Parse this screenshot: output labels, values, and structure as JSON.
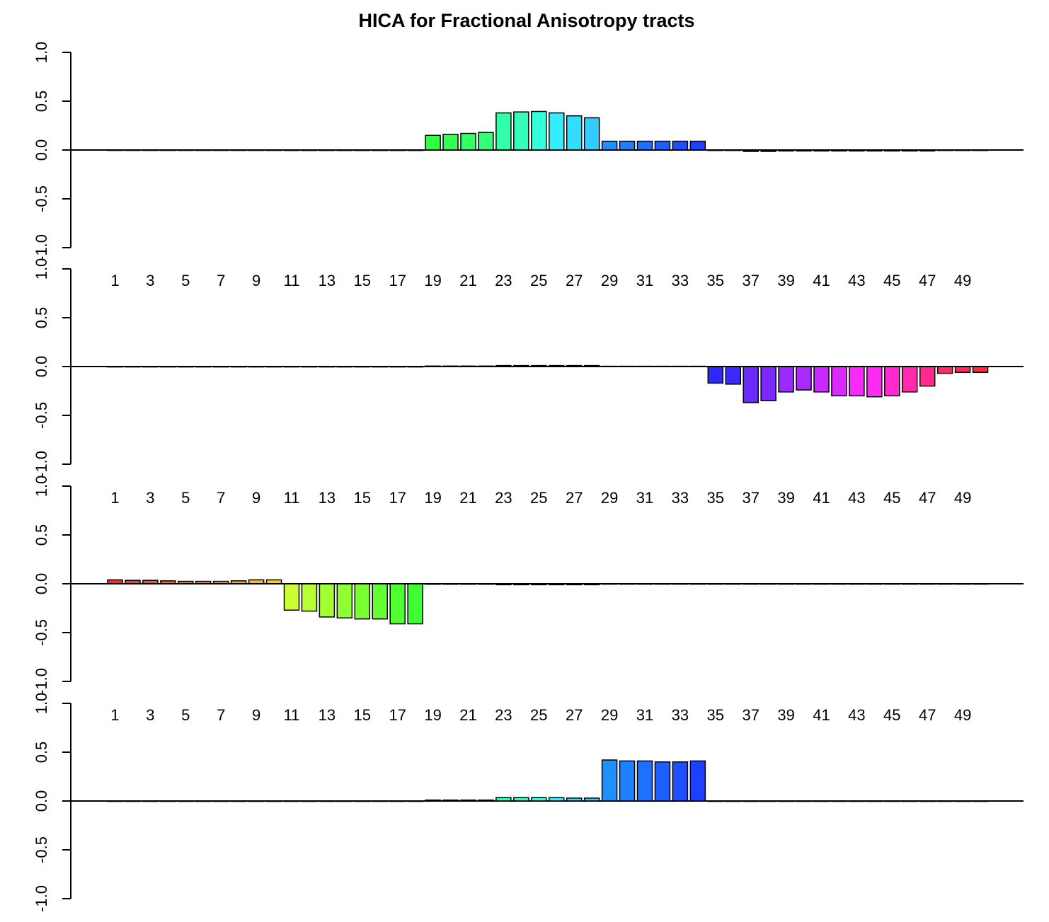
{
  "title": "HICA for  Fractional Anisotropy tracts",
  "chart_data": [
    {
      "type": "bar",
      "categories": [
        "1",
        "2",
        "3",
        "4",
        "5",
        "6",
        "7",
        "8",
        "9",
        "10",
        "11",
        "12",
        "13",
        "14",
        "15",
        "16",
        "17",
        "18",
        "19",
        "20",
        "21",
        "22",
        "23",
        "24",
        "25",
        "26",
        "27",
        "28",
        "29",
        "30",
        "31",
        "32",
        "33",
        "34",
        "35",
        "36",
        "37",
        "38",
        "39",
        "40",
        "41",
        "42",
        "43",
        "44",
        "45",
        "46",
        "47",
        "48",
        "49",
        "50"
      ],
      "values": [
        0,
        0,
        0,
        0,
        0,
        0,
        0,
        0,
        0,
        0,
        -0.005,
        -0.005,
        -0.005,
        -0.005,
        -0.005,
        -0.005,
        -0.005,
        -0.005,
        0.15,
        0.16,
        0.17,
        0.18,
        0.38,
        0.39,
        0.395,
        0.38,
        0.35,
        0.33,
        0.09,
        0.09,
        0.09,
        0.09,
        0.09,
        0.09,
        -0.005,
        -0.005,
        -0.015,
        -0.015,
        -0.01,
        -0.01,
        -0.01,
        -0.01,
        -0.01,
        -0.01,
        -0.01,
        -0.01,
        -0.01,
        -0.005,
        -0.005,
        -0.005
      ],
      "colors": [
        "#ff2a2a",
        "#ff3c2a",
        "#ff4e2a",
        "#ff602a",
        "#ff722a",
        "#ff842a",
        "#ff962a",
        "#ffa82a",
        "#ffba2a",
        "#ffcc2a",
        "#ccff33",
        "#b8ff33",
        "#a4ff33",
        "#8fff33",
        "#7aff33",
        "#66ff33",
        "#52ff33",
        "#3eff33",
        "#33ff44",
        "#33ff55",
        "#33ff66",
        "#33ff77",
        "#33ffaa",
        "#33ffbb",
        "#33ffdd",
        "#33eeff",
        "#33ddff",
        "#33ccff",
        "#1e90ff",
        "#1e80ff",
        "#1e70ff",
        "#1e60ff",
        "#1e50ff",
        "#1e40ff",
        "#2a2aff",
        "#3a2aff",
        "#6a2aff",
        "#7a2aff",
        "#9a2aff",
        "#aa2aff",
        "#ca2aff",
        "#da2aff",
        "#fa2aff",
        "#ff2af0",
        "#ff2ad0",
        "#ff2ab0",
        "#ff2a90",
        "#ff2a70",
        "#ff2a55",
        "#ff2a40"
      ],
      "yticks": [
        "-1.0",
        "-0.5",
        "0.0",
        "0.5",
        "1.0"
      ],
      "ylim": [
        -1.0,
        1.0
      ],
      "xtick_labels": []
    },
    {
      "type": "bar",
      "categories": [
        "1",
        "2",
        "3",
        "4",
        "5",
        "6",
        "7",
        "8",
        "9",
        "10",
        "11",
        "12",
        "13",
        "14",
        "15",
        "16",
        "17",
        "18",
        "19",
        "20",
        "21",
        "22",
        "23",
        "24",
        "25",
        "26",
        "27",
        "28",
        "29",
        "30",
        "31",
        "32",
        "33",
        "34",
        "35",
        "36",
        "37",
        "38",
        "39",
        "40",
        "41",
        "42",
        "43",
        "44",
        "45",
        "46",
        "47",
        "48",
        "49",
        "50"
      ],
      "values": [
        0,
        0,
        0,
        0,
        0,
        0,
        0,
        0,
        0,
        0,
        0,
        0,
        0,
        0,
        0,
        0,
        0,
        0,
        0.005,
        0.005,
        0.005,
        0.005,
        0.01,
        0.01,
        0.01,
        0.01,
        0.01,
        0.01,
        0.003,
        0.003,
        0.003,
        0.003,
        0.003,
        0.003,
        -0.17,
        -0.18,
        -0.37,
        -0.35,
        -0.26,
        -0.24,
        -0.26,
        -0.3,
        -0.3,
        -0.31,
        -0.3,
        -0.26,
        -0.2,
        -0.07,
        -0.06,
        -0.06
      ],
      "colors": [
        "#ff2a2a",
        "#ff3c2a",
        "#ff4e2a",
        "#ff602a",
        "#ff722a",
        "#ff842a",
        "#ff962a",
        "#ffa82a",
        "#ffba2a",
        "#ffcc2a",
        "#ccff33",
        "#b8ff33",
        "#a4ff33",
        "#8fff33",
        "#7aff33",
        "#66ff33",
        "#52ff33",
        "#3eff33",
        "#33ff44",
        "#33ff55",
        "#33ff66",
        "#33ff77",
        "#33ffaa",
        "#33ffbb",
        "#33ffdd",
        "#33eeff",
        "#33ddff",
        "#33ccff",
        "#1e90ff",
        "#1e80ff",
        "#1e70ff",
        "#1e60ff",
        "#1e50ff",
        "#1e40ff",
        "#2a2aff",
        "#3a2aff",
        "#6a2aff",
        "#7a2aff",
        "#9a2aff",
        "#aa2aff",
        "#ca2aff",
        "#da2aff",
        "#fa2aff",
        "#ff2af0",
        "#ff2ad0",
        "#ff2ab0",
        "#ff2a90",
        "#ff2a70",
        "#ff2a55",
        "#ff2a40"
      ],
      "yticks": [
        "-1.0",
        "-0.5",
        "0.0",
        "0.5",
        "1.0"
      ],
      "ylim": [
        -1.0,
        1.0
      ],
      "xtick_labels": [
        "1",
        "3",
        "5",
        "7",
        "9",
        "11",
        "13",
        "15",
        "17",
        "19",
        "21",
        "23",
        "25",
        "27",
        "29",
        "31",
        "33",
        "35",
        "37",
        "39",
        "41",
        "43",
        "45",
        "47",
        "49"
      ]
    },
    {
      "type": "bar",
      "categories": [
        "1",
        "2",
        "3",
        "4",
        "5",
        "6",
        "7",
        "8",
        "9",
        "10",
        "11",
        "12",
        "13",
        "14",
        "15",
        "16",
        "17",
        "18",
        "19",
        "20",
        "21",
        "22",
        "23",
        "24",
        "25",
        "26",
        "27",
        "28",
        "29",
        "30",
        "31",
        "32",
        "33",
        "34",
        "35",
        "36",
        "37",
        "38",
        "39",
        "40",
        "41",
        "42",
        "43",
        "44",
        "45",
        "46",
        "47",
        "48",
        "49",
        "50"
      ],
      "values": [
        0.04,
        0.035,
        0.035,
        0.03,
        0.025,
        0.025,
        0.025,
        0.03,
        0.04,
        0.04,
        -0.27,
        -0.28,
        -0.34,
        -0.35,
        -0.36,
        -0.36,
        -0.41,
        -0.41,
        -0.005,
        -0.005,
        -0.005,
        -0.005,
        -0.01,
        -0.01,
        -0.01,
        -0.01,
        -0.01,
        -0.01,
        -0.003,
        -0.003,
        -0.003,
        -0.003,
        -0.003,
        -0.003,
        0,
        0,
        0,
        0,
        0,
        0,
        0,
        0,
        0,
        0,
        0,
        0,
        0,
        0,
        0,
        0
      ],
      "colors": [
        "#ff2a2a",
        "#ff3c2a",
        "#ff4e2a",
        "#ff602a",
        "#ff722a",
        "#ff842a",
        "#ff962a",
        "#ffa82a",
        "#ffba2a",
        "#ffcc2a",
        "#ccff33",
        "#b8ff33",
        "#a4ff33",
        "#8fff33",
        "#7aff33",
        "#66ff33",
        "#52ff33",
        "#3eff33",
        "#33ff44",
        "#33ff55",
        "#33ff66",
        "#33ff77",
        "#33ffaa",
        "#33ffbb",
        "#33ffdd",
        "#33eeff",
        "#33ddff",
        "#33ccff",
        "#1e90ff",
        "#1e80ff",
        "#1e70ff",
        "#1e60ff",
        "#1e50ff",
        "#1e40ff",
        "#2a2aff",
        "#3a2aff",
        "#6a2aff",
        "#7a2aff",
        "#9a2aff",
        "#aa2aff",
        "#ca2aff",
        "#da2aff",
        "#fa2aff",
        "#ff2af0",
        "#ff2ad0",
        "#ff2ab0",
        "#ff2a90",
        "#ff2a70",
        "#ff2a55",
        "#ff2a40"
      ],
      "yticks": [
        "-1.0",
        "-0.5",
        "0.0",
        "0.5",
        "1.0"
      ],
      "ylim": [
        -1.0,
        1.0
      ],
      "xtick_labels": [
        "1",
        "3",
        "5",
        "7",
        "9",
        "11",
        "13",
        "15",
        "17",
        "19",
        "21",
        "23",
        "25",
        "27",
        "29",
        "31",
        "33",
        "35",
        "37",
        "39",
        "41",
        "43",
        "45",
        "47",
        "49"
      ]
    },
    {
      "type": "bar",
      "categories": [
        "1",
        "2",
        "3",
        "4",
        "5",
        "6",
        "7",
        "8",
        "9",
        "10",
        "11",
        "12",
        "13",
        "14",
        "15",
        "16",
        "17",
        "18",
        "19",
        "20",
        "21",
        "22",
        "23",
        "24",
        "25",
        "26",
        "27",
        "28",
        "29",
        "30",
        "31",
        "32",
        "33",
        "34",
        "35",
        "36",
        "37",
        "38",
        "39",
        "40",
        "41",
        "42",
        "43",
        "44",
        "45",
        "46",
        "47",
        "48",
        "49",
        "50"
      ],
      "values": [
        0,
        0,
        0,
        0,
        0,
        0,
        0,
        0,
        0,
        0,
        0,
        0,
        0,
        0,
        0,
        0,
        0,
        0,
        0.01,
        0.01,
        0.01,
        0.01,
        0.035,
        0.035,
        0.035,
        0.035,
        0.03,
        0.03,
        0.42,
        0.41,
        0.41,
        0.4,
        0.4,
        0.41,
        0,
        0,
        0,
        0,
        0,
        0,
        0,
        0,
        0,
        0,
        0,
        0,
        0,
        0,
        0,
        0
      ],
      "colors": [
        "#ff2a2a",
        "#ff3c2a",
        "#ff4e2a",
        "#ff602a",
        "#ff722a",
        "#ff842a",
        "#ff962a",
        "#ffa82a",
        "#ffba2a",
        "#ffcc2a",
        "#ccff33",
        "#b8ff33",
        "#a4ff33",
        "#8fff33",
        "#7aff33",
        "#66ff33",
        "#52ff33",
        "#3eff33",
        "#33ff44",
        "#33ff55",
        "#33ff66",
        "#33ff77",
        "#33ffaa",
        "#33ffbb",
        "#33ffdd",
        "#33eeff",
        "#33ddff",
        "#33ccff",
        "#1e90ff",
        "#1e80ff",
        "#1e70ff",
        "#1e60ff",
        "#1e50ff",
        "#1e40ff",
        "#2a2aff",
        "#3a2aff",
        "#6a2aff",
        "#7a2aff",
        "#9a2aff",
        "#aa2aff",
        "#ca2aff",
        "#da2aff",
        "#fa2aff",
        "#ff2af0",
        "#ff2ad0",
        "#ff2ab0",
        "#ff2a90",
        "#ff2a70",
        "#ff2a55",
        "#ff2a40"
      ],
      "yticks": [
        "-1.0",
        "-0.5",
        "0.0",
        "0.5",
        "1.0"
      ],
      "ylim": [
        -1.0,
        1.0
      ],
      "xtick_labels": [
        "1",
        "3",
        "5",
        "7",
        "9",
        "11",
        "13",
        "15",
        "17",
        "19",
        "21",
        "23",
        "25",
        "27",
        "29",
        "31",
        "33",
        "35",
        "37",
        "39",
        "41",
        "43",
        "45",
        "47",
        "49"
      ]
    }
  ]
}
